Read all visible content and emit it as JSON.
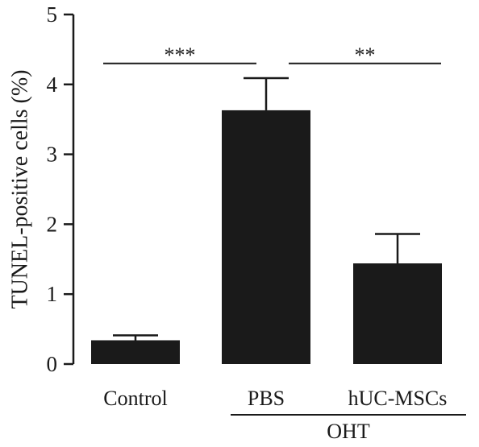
{
  "chart_data": {
    "type": "bar",
    "ylabel": "TUNEL-positive cells (%)",
    "ylim": [
      0,
      5
    ],
    "yticks": [
      "0",
      "1",
      "2",
      "3",
      "4",
      "5"
    ],
    "categories": [
      "Control",
      "PBS",
      "hUC-MSCs"
    ],
    "values": [
      0.34,
      3.63,
      1.44
    ],
    "errors": [
      0.07,
      0.46,
      0.42
    ],
    "bar_color": "#1a1a1a",
    "group": {
      "label": "OHT",
      "categories": [
        "PBS",
        "hUC-MSCs"
      ]
    },
    "significance": [
      {
        "from": "Control",
        "to": "PBS",
        "label": "***",
        "y": 4.3
      },
      {
        "from": "PBS",
        "to": "hUC-MSCs",
        "label": "**",
        "y": 4.3
      }
    ]
  }
}
